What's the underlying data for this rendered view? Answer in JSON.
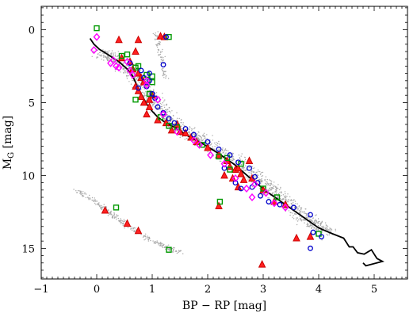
{
  "chart_data": {
    "type": "scatter",
    "title": "",
    "xlabel": "BP − RP [mag]",
    "ylabel": "M_G [mag]",
    "ylabel_main": "M",
    "ylabel_sub": "G",
    "ylabel_unit": " [mag]",
    "xlim": [
      -1,
      5.6
    ],
    "ylim": [
      17.1,
      -1.6
    ],
    "y_inverted": true,
    "x_ticks": [
      -1,
      0,
      1,
      2,
      3,
      4,
      5
    ],
    "x_tick_labels": [
      "−1",
      "0",
      "1",
      "2",
      "3",
      "4",
      "5"
    ],
    "y_ticks": [
      0,
      5,
      10,
      15
    ],
    "y_tick_labels": [
      "0",
      "5",
      "10",
      "15"
    ],
    "grid": false,
    "legend": "none",
    "background": {
      "name": "field stars (gray dots)",
      "color": "#a8a8a8",
      "regions": [
        {
          "kind": "main-sequence",
          "path": [
            [
              0.1,
              1.6
            ],
            [
              0.45,
              2.4
            ],
            [
              0.75,
              3.4
            ],
            [
              1.0,
              4.8
            ],
            [
              1.3,
              6.1
            ],
            [
              1.6,
              7.0
            ],
            [
              2.0,
              7.8
            ],
            [
              2.5,
              9.0
            ],
            [
              3.0,
              10.6
            ],
            [
              3.4,
              11.8
            ],
            [
              3.8,
              13.0
            ],
            [
              4.2,
              14.0
            ]
          ],
          "width": 0.55,
          "count": 1500
        },
        {
          "kind": "giant-branch",
          "path": [
            [
              1.05,
              0.2
            ],
            [
              1.15,
              1.6
            ],
            [
              1.25,
              3.5
            ]
          ],
          "width": 0.15,
          "count": 80
        },
        {
          "kind": "white-dwarf",
          "path": [
            [
              -0.35,
              11.0
            ],
            [
              0.1,
              12.2
            ],
            [
              0.5,
              13.3
            ],
            [
              1.0,
              14.5
            ],
            [
              1.5,
              15.3
            ]
          ],
          "width": 0.22,
          "count": 300
        }
      ]
    },
    "series": [
      {
        "name": "reference sequence",
        "type": "line",
        "color": "#000000",
        "points": [
          [
            -0.12,
            0.6
          ],
          [
            -0.05,
            1.0
          ],
          [
            0.05,
            1.35
          ],
          [
            0.2,
            1.7
          ],
          [
            0.4,
            2.2
          ],
          [
            0.55,
            2.7
          ],
          [
            0.65,
            3.2
          ],
          [
            0.72,
            3.8
          ],
          [
            0.8,
            4.4
          ],
          [
            0.9,
            5.1
          ],
          [
            1.0,
            5.6
          ],
          [
            1.1,
            6.0
          ],
          [
            1.25,
            6.4
          ],
          [
            1.45,
            6.8
          ],
          [
            1.65,
            7.3
          ],
          [
            1.9,
            7.8
          ],
          [
            2.2,
            8.5
          ],
          [
            2.5,
            9.3
          ],
          [
            2.8,
            10.3
          ],
          [
            3.1,
            11.2
          ],
          [
            3.4,
            12.0
          ],
          [
            3.7,
            12.8
          ],
          [
            4.0,
            13.6
          ],
          [
            4.25,
            14.0
          ],
          [
            4.45,
            14.3
          ],
          [
            4.55,
            14.9
          ],
          [
            4.62,
            14.9
          ],
          [
            4.7,
            15.3
          ],
          [
            4.82,
            15.4
          ],
          [
            4.95,
            15.1
          ],
          [
            5.05,
            15.7
          ],
          [
            5.15,
            15.9
          ],
          [
            4.85,
            16.2
          ],
          [
            4.8,
            16.0
          ]
        ]
      },
      {
        "name": "red triangles",
        "type": "scatter",
        "marker": "triangle",
        "color": "#cc0000",
        "fill": "#ff2020",
        "points": [
          [
            0.4,
            0.7
          ],
          [
            0.75,
            0.7
          ],
          [
            1.15,
            0.45
          ],
          [
            1.22,
            0.5
          ],
          [
            0.7,
            1.5
          ],
          [
            0.45,
            1.95
          ],
          [
            0.6,
            2.2
          ],
          [
            0.65,
            2.7
          ],
          [
            0.75,
            3.0
          ],
          [
            0.8,
            3.3
          ],
          [
            0.85,
            3.6
          ],
          [
            0.7,
            3.9
          ],
          [
            0.75,
            4.2
          ],
          [
            0.8,
            4.6
          ],
          [
            0.85,
            5.0
          ],
          [
            0.95,
            5.3
          ],
          [
            0.9,
            5.8
          ],
          [
            1.0,
            4.5
          ],
          [
            1.1,
            6.2
          ],
          [
            1.25,
            6.4
          ],
          [
            1.45,
            6.5
          ],
          [
            1.5,
            7.0
          ],
          [
            1.6,
            7.1
          ],
          [
            1.7,
            7.4
          ],
          [
            1.8,
            7.7
          ],
          [
            2.0,
            8.1
          ],
          [
            2.2,
            8.6
          ],
          [
            2.35,
            9.0
          ],
          [
            2.4,
            9.4
          ],
          [
            2.5,
            9.6
          ],
          [
            2.6,
            9.9
          ],
          [
            2.8,
            10.2
          ],
          [
            2.3,
            10.0
          ],
          [
            2.45,
            10.2
          ],
          [
            2.55,
            9.5
          ],
          [
            3.0,
            11.0
          ],
          [
            3.2,
            11.8
          ],
          [
            3.4,
            12.0
          ],
          [
            3.6,
            14.3
          ],
          [
            3.85,
            14.2
          ],
          [
            2.2,
            12.1
          ],
          [
            2.75,
            9.0
          ],
          [
            2.98,
            16.1
          ],
          [
            0.15,
            12.4
          ],
          [
            0.55,
            13.3
          ],
          [
            0.75,
            13.8
          ],
          [
            2.55,
            10.8
          ],
          [
            1.35,
            6.9
          ],
          [
            2.65,
            10.3
          ],
          [
            0.95,
            4.8
          ]
        ]
      },
      {
        "name": "green squares",
        "type": "scatter",
        "marker": "square",
        "color": "#009900",
        "points": [
          [
            0.0,
            -0.1
          ],
          [
            1.3,
            0.5
          ],
          [
            0.45,
            1.8
          ],
          [
            0.55,
            1.7
          ],
          [
            0.7,
            2.6
          ],
          [
            0.9,
            3.1
          ],
          [
            1.0,
            3.2
          ],
          [
            1.0,
            3.6
          ],
          [
            0.95,
            4.4
          ],
          [
            0.7,
            4.8
          ],
          [
            1.3,
            6.6
          ],
          [
            1.45,
            6.7
          ],
          [
            1.9,
            7.9
          ],
          [
            2.2,
            8.7
          ],
          [
            2.35,
            8.8
          ],
          [
            2.6,
            9.2
          ],
          [
            2.4,
            9.6
          ],
          [
            3.0,
            10.9
          ],
          [
            3.25,
            11.5
          ],
          [
            4.0,
            14.0
          ],
          [
            0.35,
            12.2
          ],
          [
            2.22,
            11.8
          ],
          [
            1.3,
            15.1
          ],
          [
            0.75,
            2.5
          ],
          [
            1.15,
            6.0
          ]
        ]
      },
      {
        "name": "blue circles",
        "type": "scatter",
        "marker": "circle",
        "color": "#0000cc",
        "points": [
          [
            1.25,
            0.5
          ],
          [
            1.2,
            2.4
          ],
          [
            0.8,
            2.8
          ],
          [
            0.85,
            3.3
          ],
          [
            0.95,
            3.5
          ],
          [
            0.9,
            3.9
          ],
          [
            0.75,
            4.0
          ],
          [
            1.0,
            4.4
          ],
          [
            1.05,
            4.7
          ],
          [
            1.1,
            5.3
          ],
          [
            1.2,
            5.7
          ],
          [
            1.3,
            6.1
          ],
          [
            1.6,
            6.8
          ],
          [
            1.75,
            7.2
          ],
          [
            2.0,
            7.7
          ],
          [
            2.2,
            8.2
          ],
          [
            2.4,
            8.6
          ],
          [
            2.55,
            9.1
          ],
          [
            2.75,
            9.5
          ],
          [
            2.85,
            10.1
          ],
          [
            2.5,
            10.5
          ],
          [
            2.6,
            10.9
          ],
          [
            2.8,
            10.8
          ],
          [
            2.95,
            11.4
          ],
          [
            3.1,
            11.8
          ],
          [
            3.3,
            12.0
          ],
          [
            3.55,
            12.2
          ],
          [
            3.85,
            12.7
          ],
          [
            3.9,
            13.9
          ],
          [
            3.85,
            15.0
          ],
          [
            4.05,
            14.2
          ],
          [
            2.9,
            10.5
          ],
          [
            0.6,
            2.3
          ],
          [
            0.95,
            3.0
          ],
          [
            1.4,
            6.4
          ],
          [
            2.3,
            9.5
          ]
        ]
      },
      {
        "name": "magenta diamonds",
        "type": "scatter",
        "marker": "diamond",
        "color": "#ff00ff",
        "points": [
          [
            0.0,
            0.5
          ],
          [
            -0.05,
            1.4
          ],
          [
            0.3,
            2.1
          ],
          [
            0.25,
            2.3
          ],
          [
            0.35,
            2.5
          ],
          [
            0.55,
            2.2
          ],
          [
            0.6,
            2.8
          ],
          [
            0.65,
            3.1
          ],
          [
            0.9,
            3.8
          ],
          [
            0.9,
            3.5
          ],
          [
            1.1,
            4.8
          ],
          [
            1.45,
            7.0
          ],
          [
            1.75,
            7.6
          ],
          [
            1.85,
            7.9
          ],
          [
            2.05,
            8.6
          ],
          [
            2.3,
            9.2
          ],
          [
            2.5,
            10.2
          ],
          [
            2.7,
            10.9
          ],
          [
            2.8,
            11.5
          ],
          [
            3.05,
            11.2
          ],
          [
            3.2,
            11.9
          ],
          [
            2.85,
            10.6
          ],
          [
            3.4,
            12.2
          ],
          [
            0.4,
            2.6
          ],
          [
            1.2,
            5.8
          ]
        ]
      }
    ]
  }
}
